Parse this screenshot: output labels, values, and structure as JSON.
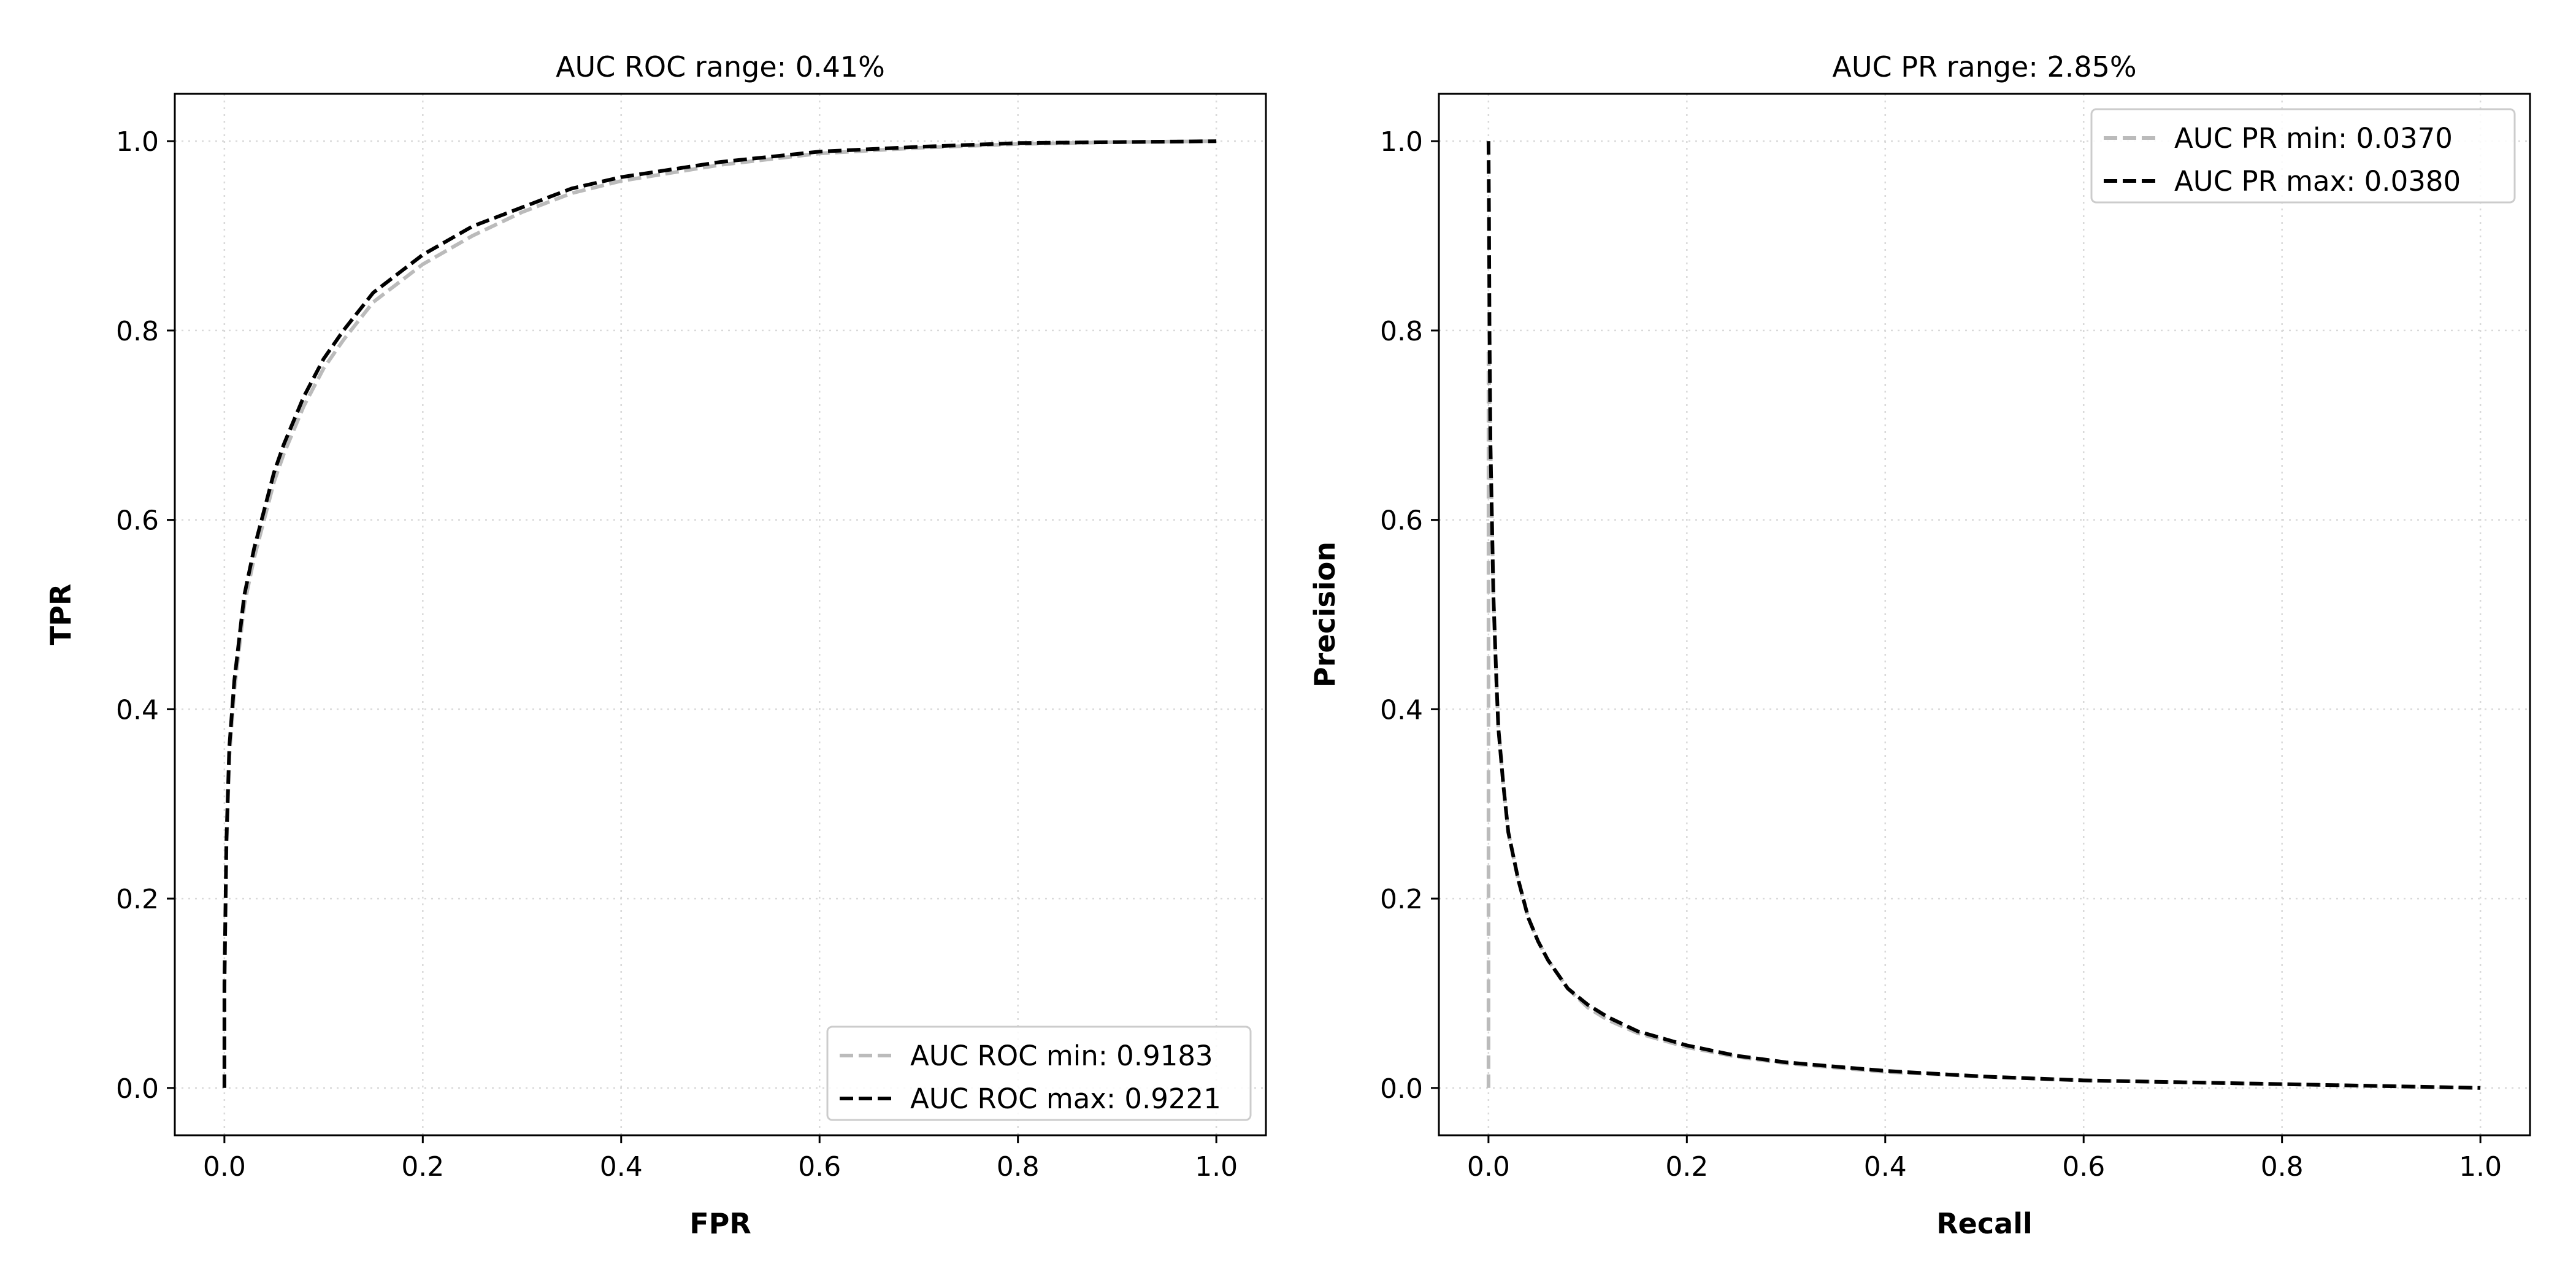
{
  "chart_data": [
    {
      "type": "line",
      "title": "AUC ROC range: 0.41%",
      "xlabel": "FPR",
      "ylabel": "TPR",
      "xlim": [
        -0.05,
        1.05
      ],
      "ylim": [
        -0.05,
        1.05
      ],
      "xticks": [
        "0.0",
        "0.2",
        "0.4",
        "0.6",
        "0.8",
        "1.0"
      ],
      "yticks": [
        "0.0",
        "0.2",
        "0.4",
        "0.6",
        "0.8",
        "1.0"
      ],
      "grid": true,
      "legend_position": "lower-right",
      "series": [
        {
          "name": "AUC ROC min: 0.9183",
          "color": "#bbbbbb",
          "style": "dashed",
          "x": [
            0.0,
            0.0,
            0.002,
            0.005,
            0.01,
            0.02,
            0.03,
            0.04,
            0.05,
            0.06,
            0.08,
            0.1,
            0.12,
            0.15,
            0.2,
            0.25,
            0.3,
            0.35,
            0.4,
            0.5,
            0.6,
            0.7,
            0.8,
            0.9,
            1.0
          ],
          "y": [
            0.0,
            0.1,
            0.25,
            0.35,
            0.42,
            0.51,
            0.56,
            0.6,
            0.64,
            0.67,
            0.72,
            0.76,
            0.79,
            0.83,
            0.87,
            0.9,
            0.925,
            0.945,
            0.958,
            0.975,
            0.987,
            0.993,
            0.997,
            0.999,
            1.0
          ]
        },
        {
          "name": "AUC ROC max: 0.9221",
          "color": "#000000",
          "style": "dashed",
          "x": [
            0.0,
            0.0,
            0.002,
            0.005,
            0.01,
            0.02,
            0.03,
            0.04,
            0.05,
            0.06,
            0.08,
            0.1,
            0.12,
            0.15,
            0.2,
            0.25,
            0.3,
            0.35,
            0.4,
            0.5,
            0.6,
            0.7,
            0.8,
            0.9,
            1.0
          ],
          "y": [
            0.0,
            0.11,
            0.26,
            0.36,
            0.43,
            0.52,
            0.57,
            0.61,
            0.65,
            0.68,
            0.73,
            0.77,
            0.8,
            0.84,
            0.88,
            0.91,
            0.93,
            0.95,
            0.962,
            0.978,
            0.989,
            0.994,
            0.998,
            0.999,
            1.0
          ]
        }
      ]
    },
    {
      "type": "line",
      "title": "AUC PR range: 2.85%",
      "xlabel": "Recall",
      "ylabel": "Precision",
      "xlim": [
        -0.05,
        1.05
      ],
      "ylim": [
        -0.05,
        1.05
      ],
      "xticks": [
        "0.0",
        "0.2",
        "0.4",
        "0.6",
        "0.8",
        "1.0"
      ],
      "yticks": [
        "0.0",
        "0.2",
        "0.4",
        "0.6",
        "0.8",
        "1.0"
      ],
      "grid": true,
      "legend_position": "upper-right",
      "series": [
        {
          "name": "AUC PR min: 0.0370",
          "color": "#bbbbbb",
          "style": "dashed",
          "x": [
            0.0,
            0.0,
            0.0,
            0.002,
            0.005,
            0.008,
            0.01,
            0.015,
            0.02,
            0.03,
            0.04,
            0.05,
            0.06,
            0.08,
            0.1,
            0.12,
            0.15,
            0.2,
            0.25,
            0.3,
            0.4,
            0.5,
            0.6,
            0.7,
            0.8,
            0.9,
            1.0
          ],
          "y": [
            0.0,
            0.6,
            0.78,
            0.68,
            0.52,
            0.43,
            0.38,
            0.32,
            0.27,
            0.22,
            0.18,
            0.155,
            0.135,
            0.105,
            0.085,
            0.072,
            0.058,
            0.043,
            0.033,
            0.026,
            0.017,
            0.012,
            0.008,
            0.006,
            0.004,
            0.002,
            0.0
          ]
        },
        {
          "name": "AUC PR max: 0.0380",
          "color": "#000000",
          "style": "dashed",
          "x": [
            0.0,
            0.0005,
            0.001,
            0.002,
            0.005,
            0.008,
            0.01,
            0.015,
            0.02,
            0.03,
            0.04,
            0.05,
            0.06,
            0.08,
            0.1,
            0.12,
            0.15,
            0.2,
            0.25,
            0.3,
            0.4,
            0.5,
            0.6,
            0.7,
            0.8,
            0.9,
            1.0
          ],
          "y": [
            1.0,
            0.92,
            0.8,
            0.68,
            0.52,
            0.43,
            0.38,
            0.32,
            0.27,
            0.22,
            0.18,
            0.155,
            0.135,
            0.105,
            0.088,
            0.075,
            0.06,
            0.045,
            0.034,
            0.027,
            0.018,
            0.012,
            0.008,
            0.006,
            0.004,
            0.002,
            0.0
          ]
        }
      ]
    }
  ]
}
